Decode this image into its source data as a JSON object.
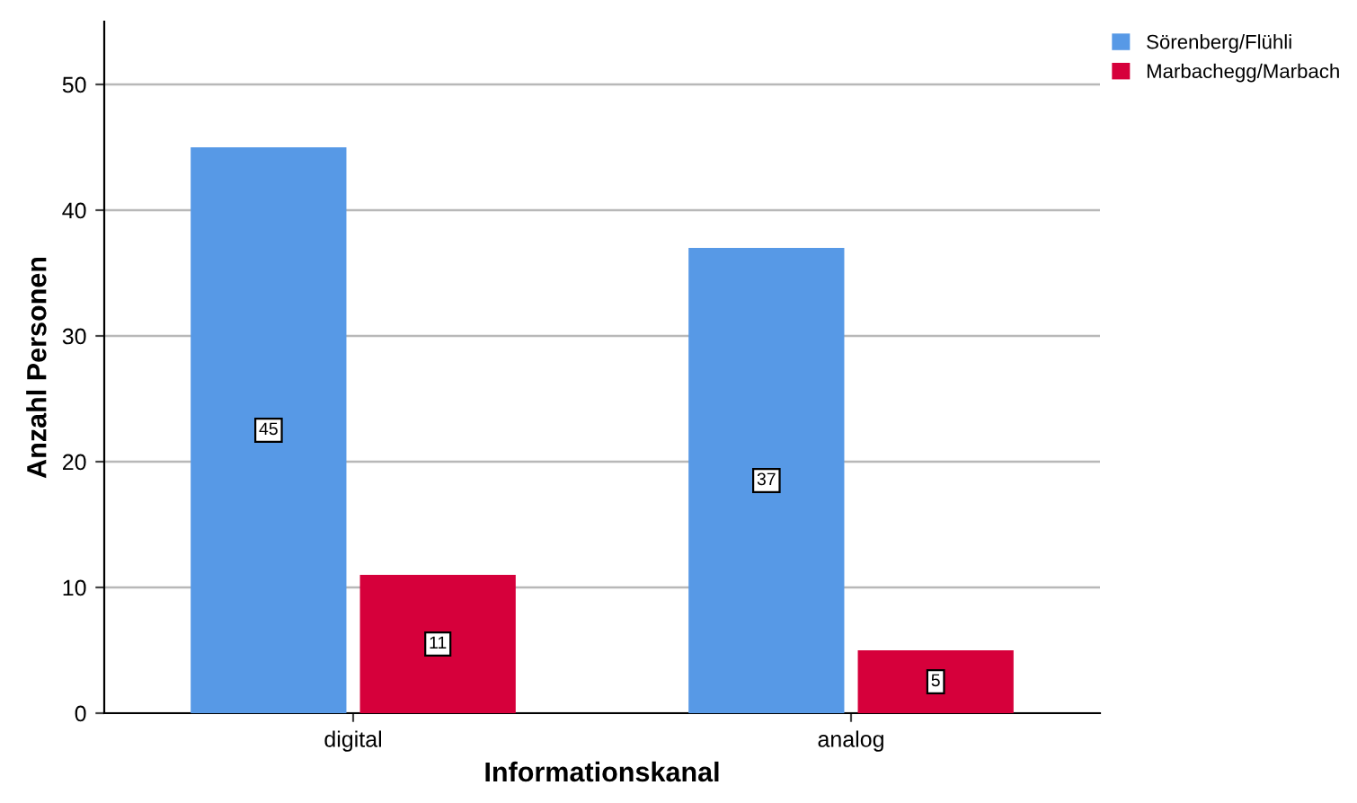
{
  "chart_data": {
    "type": "bar",
    "xlabel": "Informationskanal",
    "ylabel": "Anzahl Personen",
    "categories": [
      "digital",
      "analog"
    ],
    "series": [
      {
        "name": "Sörenberg/Flühli",
        "color": "#5799e6",
        "values": [
          45,
          37
        ]
      },
      {
        "name": "Marbachegg/Marbach",
        "color": "#d6003b",
        "values": [
          11,
          5
        ]
      }
    ],
    "ylim": [
      0,
      55
    ],
    "yticks": [
      0,
      10,
      20,
      30,
      40,
      50
    ],
    "grid": "y",
    "legend": "top right",
    "data_labels": true
  }
}
